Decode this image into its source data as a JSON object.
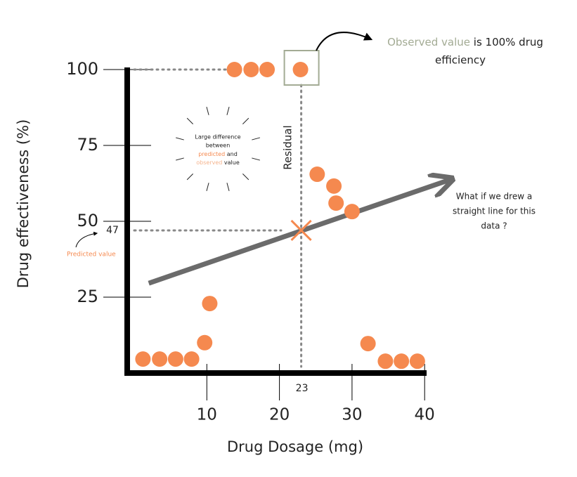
{
  "chart_data": {
    "type": "scatter",
    "x_label": "Drug Dosage (mg)",
    "y_label": "Drug effectiveness (%)",
    "x": [
      1.2,
      3.5,
      5.7,
      7.9,
      9.7,
      10.4,
      13.8,
      16.1,
      18.3,
      22.9,
      25.2,
      27.5,
      27.8,
      30.0,
      32.2,
      34.6,
      36.8,
      39.0
    ],
    "values": [
      4.6,
      4.6,
      4.6,
      4.6,
      10,
      22.9,
      100,
      100,
      100,
      100,
      65.5,
      61.6,
      56,
      53.2,
      9.7,
      3.9,
      3.9,
      3.9
    ],
    "color": "#f5894f",
    "xlim": [
      -1,
      40.5
    ],
    "ylim": [
      0,
      100
    ],
    "xticks": [
      10,
      20,
      30,
      40
    ],
    "yticks": [
      25,
      50,
      75,
      100
    ],
    "trend_line": {
      "x": [
        2,
        43.5
      ],
      "values": [
        29.6,
        63.7
      ],
      "color": "#6b6b6b"
    },
    "predicted": {
      "x": 23,
      "value": 47,
      "label": "Predicted value"
    },
    "observed": {
      "value": 100,
      "label": "Observed value",
      "note": [
        "is 100% drug",
        "efficiency"
      ],
      "color": "#a3ab94"
    },
    "residual_label": "Residual",
    "question": [
      "What if we drew a",
      "straight line for this",
      "data ?"
    ],
    "difference_note": {
      "line1": "Large difference",
      "line2": "between",
      "predicted": "predicted",
      "and": "and",
      "observed": "observed",
      "value": "value"
    }
  }
}
